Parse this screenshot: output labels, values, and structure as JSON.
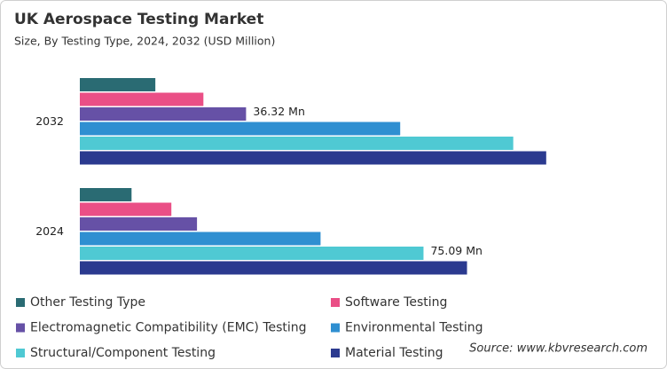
{
  "chart_data": {
    "type": "bar",
    "orientation": "horizontal",
    "title": "UK Aerospace Testing Market",
    "subtitle": "Size, By Testing Type, 2024, 2032 (USD Million)",
    "categories": [
      "2032",
      "2024"
    ],
    "series": [
      {
        "name": "Other Testing Type",
        "color": "#2a6b73",
        "values": [
          16.5,
          11.3
        ]
      },
      {
        "name": "Software Testing",
        "color": "#ea4f86",
        "values": [
          27.0,
          20.0
        ]
      },
      {
        "name": "Electromagnetic Compatibility (EMC) Testing",
        "color": "#6651a6",
        "values": [
          36.32,
          25.6
        ],
        "value_labels": [
          "36.32 Mn",
          null
        ]
      },
      {
        "name": "Environmental Testing",
        "color": "#2f8fd1",
        "values": [
          70.0,
          52.6
        ]
      },
      {
        "name": "Structural/Component Testing",
        "color": "#4fc9d3",
        "values": [
          94.7,
          75.09
        ],
        "value_labels": [
          null,
          "75.09 Mn"
        ]
      },
      {
        "name": "Material Testing",
        "color": "#2b3a8f",
        "values": [
          101.9,
          84.6
        ]
      }
    ],
    "source": "Source: www.kbvresearch.com"
  }
}
